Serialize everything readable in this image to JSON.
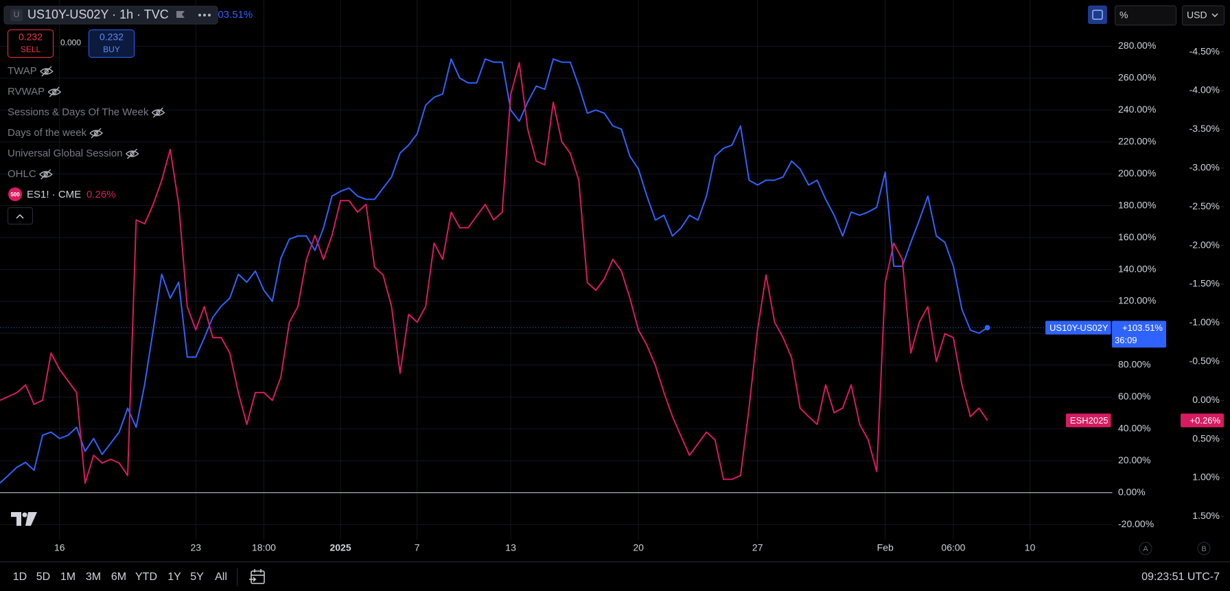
{
  "ui": {
    "symbol_icon": "U",
    "symbol": "US10Y-US02Y · 1h · TVC",
    "legend_value": "103.51%",
    "sell_price": "0.232",
    "sell": "SELL",
    "spread": "0.000",
    "buy_price": "0.232",
    "buy": "BUY",
    "indicators": [
      "TWAP",
      "RVWAP",
      "Sessions & Days Of The Week",
      "Days of the week",
      "Universal Global Session",
      "OHLC"
    ],
    "compare_icon": "500",
    "compare_symbol": "ES1! · CME",
    "compare_change": "0.26%",
    "scale_mode": "%",
    "currency": "USD",
    "ranges": [
      "1D",
      "5D",
      "1M",
      "3M",
      "6M",
      "YTD",
      "1Y",
      "5Y",
      "All"
    ],
    "clock": "09:23:51 UTC-7",
    "scale_buttons": [
      "A",
      "B"
    ]
  },
  "chart_data": {
    "type": "line",
    "categories": [
      null,
      null,
      null,
      null,
      null,
      null,
      null,
      "16",
      null,
      null,
      null,
      null,
      null,
      null,
      null,
      null,
      null,
      null,
      null,
      null,
      null,
      null,
      null,
      "23",
      null,
      null,
      null,
      null,
      null,
      null,
      null,
      "18:00",
      null,
      null,
      null,
      null,
      null,
      null,
      null,
      null,
      "2025",
      null,
      null,
      null,
      null,
      null,
      null,
      null,
      null,
      "7",
      null,
      null,
      null,
      null,
      null,
      null,
      null,
      null,
      null,
      null,
      "13",
      null,
      null,
      null,
      null,
      null,
      null,
      null,
      null,
      null,
      null,
      null,
      null,
      null,
      null,
      "20",
      null,
      null,
      null,
      null,
      null,
      null,
      null,
      null,
      null,
      null,
      null,
      null,
      null,
      "27",
      null,
      null,
      null,
      null,
      null,
      null,
      null,
      null,
      null,
      null,
      null,
      null,
      null,
      null,
      "Feb",
      null,
      null,
      null,
      null,
      null,
      null,
      null,
      "06:00",
      null,
      null,
      null,
      null,
      null,
      null,
      null,
      null,
      "10"
    ],
    "series": [
      {
        "name": "US10Y-US02Y",
        "color": "#2f63ff",
        "countdown": "36:09",
        "end_marker": true,
        "value_labels": {
          "116": "+103.51%"
        },
        "values": [
          6,
          11,
          16,
          19,
          14,
          36,
          38,
          34,
          36,
          41,
          26,
          34,
          24,
          31,
          38,
          53,
          41,
          68,
          102,
          137,
          122,
          132,
          85,
          85,
          97,
          110,
          117,
          122,
          137,
          132,
          139,
          127,
          120,
          147,
          159,
          161,
          161,
          152,
          166,
          186,
          189,
          191,
          186,
          184,
          184,
          191,
          198,
          213,
          218,
          225,
          243,
          248,
          250,
          272,
          260,
          257,
          257,
          272,
          270,
          270,
          240,
          233,
          245,
          255,
          253,
          272,
          270,
          270,
          255,
          238,
          240,
          238,
          230,
          228,
          211,
          203,
          186,
          171,
          174,
          161,
          166,
          174,
          171,
          186,
          211,
          216,
          218,
          230,
          196,
          193,
          196,
          196,
          198,
          208,
          203,
          193,
          196,
          184,
          174,
          161,
          176,
          174,
          176,
          179,
          201,
          142,
          142,
          157,
          171,
          186,
          161,
          157,
          142,
          115,
          102,
          100,
          103.51,
          null,
          null,
          null,
          null,
          null
        ]
      },
      {
        "name": "ESH2025",
        "color": "#d81b60",
        "axis": "y2",
        "value_labels": {
          "116": "+0.26%"
        },
        "values": [
          0.0,
          -0.05,
          -0.1,
          -0.2,
          0.05,
          0.0,
          -0.61,
          -0.4,
          -0.25,
          -0.1,
          1.07,
          0.71,
          0.81,
          0.76,
          0.81,
          0.97,
          -2.33,
          -2.28,
          -2.53,
          -2.84,
          -3.24,
          -2.53,
          -1.21,
          -0.91,
          -1.21,
          -0.81,
          -0.81,
          -0.61,
          -0.1,
          0.31,
          -0.1,
          -0.1,
          0.0,
          -0.3,
          -1.01,
          -1.21,
          -1.82,
          -2.13,
          -1.82,
          -2.13,
          -2.58,
          -2.58,
          -2.43,
          -2.53,
          -1.72,
          -1.62,
          -1.21,
          -0.35,
          -1.11,
          -1.01,
          -1.21,
          -2.03,
          -1.82,
          -2.43,
          -2.23,
          -2.23,
          -2.38,
          -2.53,
          -2.33,
          -2.43,
          -3.95,
          -4.36,
          -3.5,
          -3.09,
          -3.04,
          -3.85,
          -3.34,
          -3.19,
          -2.84,
          -1.52,
          -1.42,
          -1.57,
          -1.82,
          -1.67,
          -1.32,
          -0.91,
          -0.71,
          -0.45,
          -0.1,
          0.21,
          0.46,
          0.71,
          0.56,
          0.41,
          0.51,
          1.02,
          1.02,
          0.97,
          0.1,
          -0.91,
          -1.62,
          -1.01,
          -0.81,
          -0.55,
          0.1,
          0.21,
          0.31,
          -0.2,
          0.16,
          0.1,
          -0.2,
          0.31,
          0.51,
          0.92,
          -1.52,
          -2.03,
          -1.82,
          -0.61,
          -1.01,
          -1.21,
          -0.5,
          -0.86,
          -0.81,
          -0.2,
          0.21,
          0.1,
          0.26,
          null,
          null,
          null,
          null,
          null
        ]
      }
    ],
    "ylim": [
      -29.5,
      309
    ],
    "yticks": [
      {
        "value": -20,
        "label": "-20.00%"
      },
      {
        "value": 0,
        "label": "0.00%"
      },
      {
        "value": 20,
        "label": "20.00%"
      },
      {
        "value": 40,
        "label": "40.00%"
      },
      {
        "value": 60,
        "label": "60.00%"
      },
      {
        "value": 80,
        "label": "80.00%"
      },
      {
        "value": 100,
        "label": "100.00%"
      },
      {
        "value": 120,
        "label": "120.00%"
      },
      {
        "value": 140,
        "label": "140.00%"
      },
      {
        "value": 160,
        "label": "160.00%"
      },
      {
        "value": 180,
        "label": "180.00%"
      },
      {
        "value": 200,
        "label": "200.00%"
      },
      {
        "value": 220,
        "label": "220.00%"
      },
      {
        "value": 240,
        "label": "240.00%"
      },
      {
        "value": 260,
        "label": "260.00%"
      },
      {
        "value": 280,
        "label": "280.00%"
      }
    ],
    "y2lim": [
      -5.17,
      1.8
    ],
    "y2_inverted": true,
    "y2ticks": [
      {
        "value": -4.5,
        "label": "-4.50%"
      },
      {
        "value": -4,
        "label": "-4.00%"
      },
      {
        "value": -3.5,
        "label": "-3.50%"
      },
      {
        "value": -3,
        "label": "-3.00%"
      },
      {
        "value": -2.5,
        "label": "-2.50%"
      },
      {
        "value": -2,
        "label": "-2.00%"
      },
      {
        "value": -1.5,
        "label": "-1.50%"
      },
      {
        "value": -1,
        "label": "-1.00%"
      },
      {
        "value": -0.5,
        "label": "-0.50%"
      },
      {
        "value": 0,
        "label": "0.00%"
      },
      {
        "value": 0.5,
        "label": "0.50%"
      },
      {
        "value": 1,
        "label": "1.00%"
      },
      {
        "value": 1.5,
        "label": "1.50%"
      }
    ],
    "grid": true
  }
}
